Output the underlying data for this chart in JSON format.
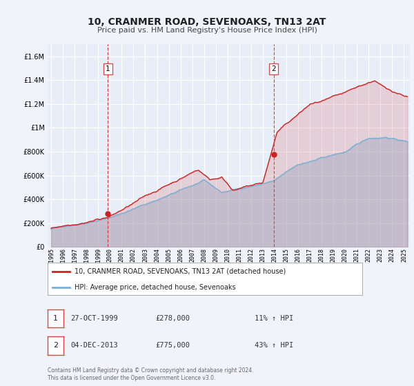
{
  "title": "10, CRANMER ROAD, SEVENOAKS, TN13 2AT",
  "subtitle": "Price paid vs. HM Land Registry's House Price Index (HPI)",
  "bg_color": "#f0f4fa",
  "plot_bg_color": "#e8eef7",
  "grid_color": "#ffffff",
  "hpi_color": "#7ab0d4",
  "price_color": "#cc2222",
  "marker_color": "#cc2222",
  "annotation_line_color": "#dd4444",
  "ylim": [
    0,
    1700000
  ],
  "yticks": [
    0,
    200000,
    400000,
    600000,
    800000,
    1000000,
    1200000,
    1400000,
    1600000
  ],
  "xlim_start": 1994.7,
  "xlim_end": 2025.5,
  "xtick_labels": [
    "1995",
    "1996",
    "1997",
    "1998",
    "1999",
    "2000",
    "2001",
    "2002",
    "2003",
    "2004",
    "2005",
    "2006",
    "2007",
    "2008",
    "2009",
    "2010",
    "2011",
    "2012",
    "2013",
    "2014",
    "2015",
    "2016",
    "2017",
    "2018",
    "2019",
    "2020",
    "2021",
    "2022",
    "2023",
    "2024",
    "2025"
  ],
  "sale1_x": 1999.82,
  "sale1_y": 278000,
  "sale1_label": "1",
  "sale2_x": 2013.92,
  "sale2_y": 775000,
  "sale2_label": "2",
  "legend_line1": "10, CRANMER ROAD, SEVENOAKS, TN13 2AT (detached house)",
  "legend_line2": "HPI: Average price, detached house, Sevenoaks",
  "table_row1_num": "1",
  "table_row1_date": "27-OCT-1999",
  "table_row1_price": "£278,000",
  "table_row1_hpi": "11% ↑ HPI",
  "table_row2_num": "2",
  "table_row2_date": "04-DEC-2013",
  "table_row2_price": "£775,000",
  "table_row2_hpi": "43% ↑ HPI",
  "footer": "Contains HM Land Registry data © Crown copyright and database right 2024.\nThis data is licensed under the Open Government Licence v3.0."
}
